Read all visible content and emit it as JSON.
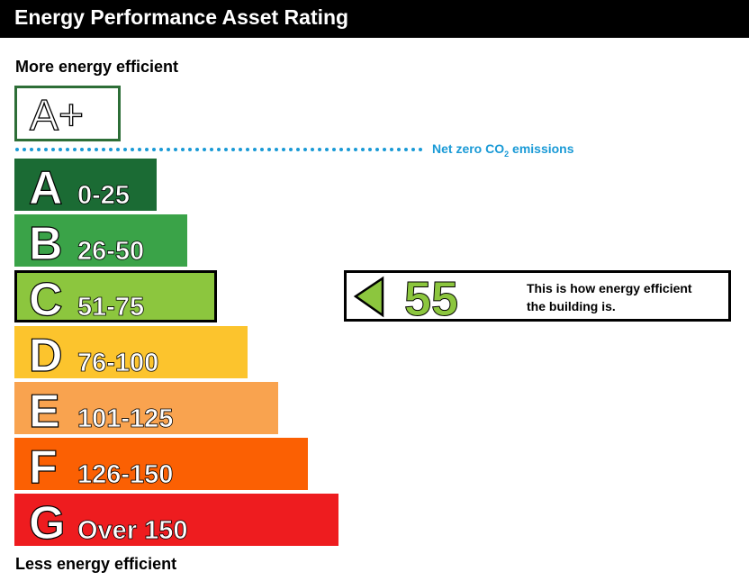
{
  "header": {
    "title": "Energy Performance Asset Rating"
  },
  "scale": {
    "top_label": "More energy efficient",
    "bottom_label": "Less energy efficient",
    "aplus": {
      "letter": "A+",
      "color": "#2d6e37"
    },
    "net_zero": {
      "text_prefix": "Net zero CO",
      "text_sub": "2",
      "text_suffix": " emissions",
      "color": "#1a9ad6"
    },
    "bands": [
      {
        "letter": "A",
        "range": "0-25",
        "color": "#1b6b34"
      },
      {
        "letter": "B",
        "range": "26-50",
        "color": "#3aa348"
      },
      {
        "letter": "C",
        "range": "51-75",
        "color": "#8cc63e",
        "current": true
      },
      {
        "letter": "D",
        "range": "76-100",
        "color": "#fcc42d"
      },
      {
        "letter": "E",
        "range": "101-125",
        "color": "#f9a34f"
      },
      {
        "letter": "F",
        "range": "126-150",
        "color": "#fb6003"
      },
      {
        "letter": "G",
        "range": "Over 150",
        "color": "#ee1c1f"
      }
    ]
  },
  "rating": {
    "value": "55",
    "color": "#8cc63e",
    "line1": "This is how energy efficient",
    "line2": "the building is."
  }
}
